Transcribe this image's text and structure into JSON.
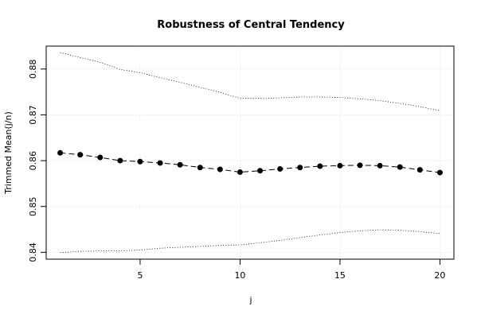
{
  "chart_data": {
    "type": "line",
    "title": "Robustness of Central Tendency",
    "xlabel": "j",
    "ylabel": "Trimmed Mean(j/n)",
    "xlim": [
      0.3,
      20.7
    ],
    "ylim": [
      0.8385,
      0.885
    ],
    "xticks": [
      5,
      10,
      15,
      20
    ],
    "yticks": [
      0.84,
      0.85,
      0.86,
      0.87,
      0.88
    ],
    "grid": true,
    "x": [
      1,
      2,
      3,
      4,
      5,
      6,
      7,
      8,
      9,
      10,
      11,
      12,
      13,
      14,
      15,
      16,
      17,
      18,
      19,
      20
    ],
    "series": [
      {
        "role": "trimmed-mean",
        "values": [
          0.8617,
          0.8613,
          0.8607,
          0.86,
          0.8598,
          0.8595,
          0.8591,
          0.8585,
          0.8581,
          0.8575,
          0.8578,
          0.8582,
          0.8585,
          0.8588,
          0.8589,
          0.859,
          0.8589,
          0.8586,
          0.858,
          0.8574
        ]
      },
      {
        "role": "upper-band",
        "values": [
          0.8836,
          0.8825,
          0.8815,
          0.8799,
          0.8792,
          0.8781,
          0.8771,
          0.876,
          0.8749,
          0.8736,
          0.8736,
          0.8737,
          0.8739,
          0.8739,
          0.8738,
          0.8735,
          0.8731,
          0.8725,
          0.8718,
          0.8709
        ]
      },
      {
        "role": "lower-band",
        "values": [
          0.8399,
          0.8402,
          0.8403,
          0.8403,
          0.8405,
          0.8409,
          0.8411,
          0.8413,
          0.8415,
          0.8416,
          0.8421,
          0.8426,
          0.8432,
          0.8438,
          0.8443,
          0.8447,
          0.8449,
          0.8448,
          0.8445,
          0.8441
        ]
      }
    ]
  }
}
